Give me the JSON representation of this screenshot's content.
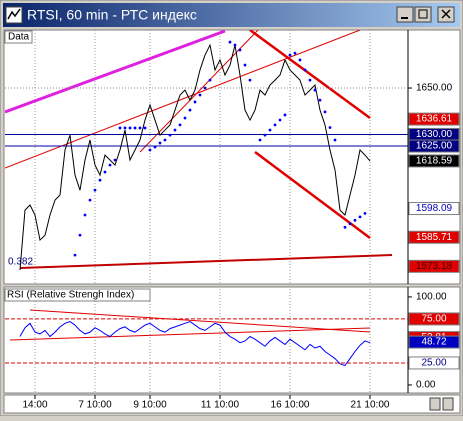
{
  "chart_data": [
    {
      "type": "line",
      "title": "RTSI, 60 min - РТС индекс",
      "pane_label": "Data",
      "fib_label": "0.382",
      "ylim": [
        1566,
        1675
      ],
      "yticks": [
        {
          "value": 1650,
          "label": "1650.00"
        }
      ],
      "grid": true,
      "series": [
        {
          "style": "line",
          "color": "#000000",
          "values": [
            1571.6,
            1597.4,
            1599.6,
            1595.3,
            1584.5,
            1586.6,
            1595.3,
            1601.7,
            1603.9,
            1623.3,
            1629.7,
            1612.5,
            1606.0,
            1619.0,
            1627.6,
            1616.8,
            1612.5,
            1621.1,
            1619.0,
            1616.8,
            1623.3,
            1631.9,
            1619.0,
            1623.3,
            1627.6,
            1636.2,
            1642.7,
            1636.2,
            1629.7,
            1631.9,
            1634.1,
            1640.5,
            1647.0,
            1649.1,
            1644.8,
            1649.1,
            1657.8,
            1664.2,
            1668.5,
            1657.8,
            1662.1,
            1655.6,
            1659.9,
            1668.5,
            1655.6,
            1640.5,
            1636.2,
            1640.5,
            1649.1,
            1647.0,
            1651.3,
            1653.4,
            1655.6,
            1662.1,
            1657.8,
            1655.6,
            1653.4,
            1647.0,
            1649.1,
            1651.3,
            1640.5,
            1634.1,
            1623.3,
            1614.7,
            1597.4,
            1595.3,
            1603.9,
            1612.5,
            1623.3,
            1621.1,
            1618.6
          ]
        },
        {
          "style": "dots",
          "color": "#0000ff",
          "values": [
            null,
            null,
            null,
            null,
            null,
            null,
            null,
            null,
            null,
            null,
            null,
            1578.0,
            1586.6,
            1595.3,
            1601.7,
            1606.0,
            1610.3,
            1613.8,
            1616.8,
            1619.0,
            1632.8,
            1632.8,
            1632.8,
            1632.8,
            1632.8,
            1632.8,
            1623.3,
            1624.6,
            1626.3,
            1627.6,
            1629.7,
            1631.9,
            1634.1,
            1637.1,
            1640.5,
            1644.0,
            1647.0,
            1650.0,
            1653.4,
            null,
            null,
            null,
            1669.8,
            1668.5,
            1666.4,
            1659.9,
            1653.4,
            null,
            1627.6,
            1629.7,
            1631.9,
            1634.1,
            1636.2,
            1638.4,
            1664.2,
            1665.0,
            1662.1,
            1657.8,
            1653.4,
            1649.1,
            1644.8,
            1639.7,
            1633.0,
            1627.6,
            null,
            1590.0,
            1591.5,
            1593.0,
            1594.5,
            1596.0,
            null
          ]
        }
      ],
      "markers": [
        {
          "value": 1636.61,
          "label": "1636.61",
          "bg": "#e00000",
          "fg": "#ffffff"
        },
        {
          "value": 1630,
          "label": "1630.00",
          "bg": "#000080",
          "fg": "#ffffff",
          "line": "#0000a0"
        },
        {
          "value": 1625,
          "label": "1625.00",
          "bg": "#000080",
          "fg": "#ffffff",
          "line": "#0000a0"
        },
        {
          "value": 1618.59,
          "label": "1618.59",
          "bg": "#000000",
          "fg": "#ffffff"
        },
        {
          "value": 1598.09,
          "label": "1598.09",
          "bg": "#ffffff",
          "fg": "#0000c0"
        },
        {
          "value": 1585.71,
          "label": "1585.71",
          "bg": "#e00000",
          "fg": "#ffffff"
        },
        {
          "value": 1573.18,
          "label": "1573.18",
          "bg": "#e00000",
          "fg": "#400000"
        }
      ]
    },
    {
      "type": "line",
      "title": "RSI (Relative Strengh Index)",
      "ylim": [
        -8,
        109
      ],
      "yticks": [
        {
          "value": 100,
          "label": "100.00"
        },
        {
          "value": 0,
          "label": "0.00"
        }
      ],
      "categories": [
        null,
        null,
        null,
        "14:00",
        null,
        null,
        null,
        null,
        null,
        null,
        null,
        null,
        null,
        null,
        null,
        "7 10:00",
        null,
        null,
        null,
        null,
        null,
        null,
        null,
        null,
        null,
        null,
        "9 10:00",
        null,
        null,
        null,
        null,
        null,
        null,
        null,
        null,
        null,
        null,
        null,
        null,
        null,
        "11 10:00",
        null,
        null,
        null,
        null,
        null,
        null,
        null,
        null,
        null,
        null,
        null,
        null,
        null,
        "16 10:00",
        null,
        null,
        null,
        null,
        null,
        null,
        null,
        null,
        null,
        null,
        null,
        null,
        null,
        null,
        null,
        "21 10:00"
      ],
      "series": [
        {
          "style": "line",
          "color": "#0000ff",
          "values": [
            55,
            65,
            70,
            60,
            58,
            62,
            55,
            60,
            66,
            70,
            72,
            68,
            62,
            58,
            60,
            65,
            62,
            58,
            55,
            60,
            64,
            66,
            62,
            60,
            64,
            68,
            70,
            66,
            62,
            60,
            64,
            66,
            68,
            70,
            72,
            68,
            64,
            62,
            66,
            70,
            68,
            60,
            55,
            52,
            48,
            50,
            55,
            52,
            48,
            44,
            50,
            54,
            50,
            46,
            52,
            48,
            44,
            40,
            46,
            42,
            44,
            38,
            34,
            30,
            24,
            22,
            30,
            38,
            45,
            50,
            48
          ]
        }
      ],
      "markers": [
        {
          "value": 75,
          "label": "75.00",
          "bg": "#e00000",
          "fg": "#ffffff",
          "line": "#e00000"
        },
        {
          "value": 53.81,
          "label": "53.81",
          "bg": "#e00000",
          "fg": "#ffffff"
        },
        {
          "value": 48.72,
          "label": "48.72",
          "bg": "#0000c0",
          "fg": "#ffffff"
        },
        {
          "value": 25,
          "label": "25.00",
          "bg": "#ffffff",
          "fg": "#000080",
          "line": "#e00000"
        }
      ]
    }
  ]
}
